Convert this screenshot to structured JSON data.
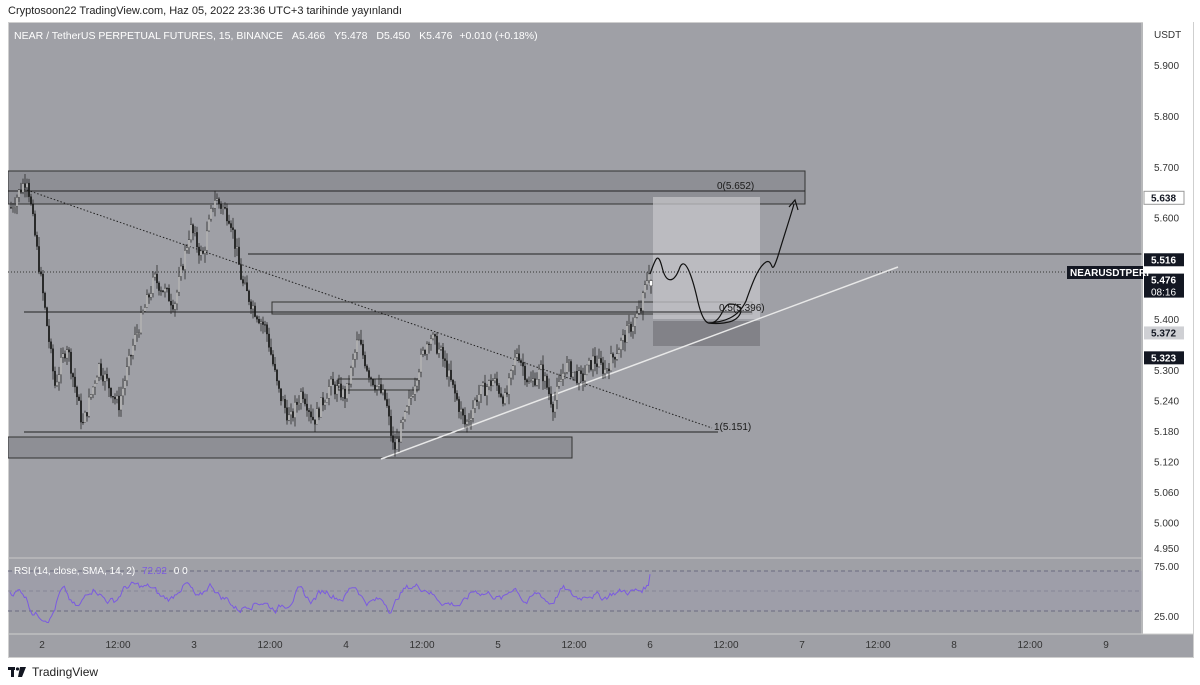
{
  "header": {
    "caption": "Cryptosoon22 TradingView.com, Haz 05, 2022 23:36 UTC+3 tarihinde yayınlandı"
  },
  "legend": {
    "title": "NEAR / TetherUS PERPETUAL FUTURES, 15, BINANCE",
    "o_label": "A",
    "o_value": "5.466",
    "h_label": "Y",
    "h_value": "5.478",
    "l_label": "D",
    "l_value": "5.450",
    "c_label": "K",
    "c_value": "5.476",
    "change": "+0.010 (+0.18%)"
  },
  "rsi_legend": {
    "label": "RSI (14, close, SMA, 14, 2)",
    "value": "72.92",
    "extra": "0  0"
  },
  "footer": {
    "brand": "TradingView"
  },
  "colors": {
    "candle": "#ffffff",
    "wick": "#1a1a1a",
    "rsi": "#7b5be0",
    "background": "#9fa0a6"
  },
  "chart_data": {
    "type": "candlestick",
    "symbol": "NEARUSDTPERP",
    "currency": "USDT",
    "x_ticks": [
      "2",
      "12:00",
      "3",
      "12:00",
      "4",
      "12:00",
      "5",
      "12:00",
      "6",
      "12:00",
      "7",
      "12:00",
      "8",
      "12:00",
      "9"
    ],
    "y_ticks": [
      "5.900",
      "5.800",
      "5.700",
      "5.600",
      "5.400",
      "5.300",
      "5.240",
      "5.180",
      "5.120",
      "5.060",
      "5.000",
      "4.950"
    ],
    "ylim": [
      4.93,
      5.985
    ],
    "price_path": [
      [
        0,
        5.62
      ],
      [
        4,
        5.68
      ],
      [
        8,
        5.45
      ],
      [
        11,
        5.27
      ],
      [
        14,
        5.35
      ],
      [
        18,
        5.19
      ],
      [
        22,
        5.31
      ],
      [
        27,
        5.23
      ],
      [
        31,
        5.36
      ],
      [
        36,
        5.48
      ],
      [
        41,
        5.43
      ],
      [
        45,
        5.58
      ],
      [
        48,
        5.52
      ],
      [
        51,
        5.64
      ],
      [
        55,
        5.6
      ],
      [
        58,
        5.47
      ],
      [
        61,
        5.42
      ],
      [
        64,
        5.38
      ],
      [
        67,
        5.26
      ],
      [
        70,
        5.2
      ],
      [
        73,
        5.26
      ],
      [
        76,
        5.2
      ],
      [
        80,
        5.27
      ],
      [
        84,
        5.25
      ],
      [
        87,
        5.36
      ],
      [
        90,
        5.29
      ],
      [
        94,
        5.24
      ],
      [
        96,
        5.14
      ],
      [
        99,
        5.21
      ],
      [
        102,
        5.3
      ],
      [
        105,
        5.37
      ],
      [
        108,
        5.33
      ],
      [
        111,
        5.26
      ],
      [
        114,
        5.19
      ],
      [
        117,
        5.25
      ],
      [
        121,
        5.28
      ],
      [
        124,
        5.24
      ],
      [
        127,
        5.34
      ],
      [
        130,
        5.27
      ],
      [
        133,
        5.3
      ],
      [
        136,
        5.23
      ],
      [
        139,
        5.31
      ],
      [
        143,
        5.28
      ],
      [
        146,
        5.32
      ],
      [
        149,
        5.3
      ],
      [
        152,
        5.34
      ],
      [
        155,
        5.38
      ],
      [
        158,
        5.42
      ],
      [
        160,
        5.5
      ]
    ],
    "last_bar": {
      "open": 5.466,
      "high": 5.478,
      "low": 5.45,
      "close": 5.476
    },
    "price_labels": [
      {
        "value": 5.638,
        "text": "5.638",
        "style": "light"
      },
      {
        "value": 5.516,
        "text": "5.516",
        "style": "dark"
      },
      {
        "value": 5.476,
        "text": "5.476",
        "style": "dark",
        "sub": "08:16"
      },
      {
        "value": 5.372,
        "text": "5.372",
        "style": "gray"
      },
      {
        "value": 5.323,
        "text": "5.323",
        "style": "dark"
      }
    ],
    "symbol_tag": "NEARUSDTPERP",
    "fib_levels": [
      {
        "value": 5.652,
        "label": "0(5.652)"
      },
      {
        "value": 5.396,
        "label": "0.5(5.396)"
      },
      {
        "value": 5.151,
        "label": "1(5.151)"
      }
    ],
    "rsi": {
      "ylim": [
        10,
        90
      ],
      "levels": [
        75,
        50,
        25
      ],
      "y_ticks": [
        "75.00",
        "25.00"
      ],
      "last_value": 72.92
    }
  }
}
